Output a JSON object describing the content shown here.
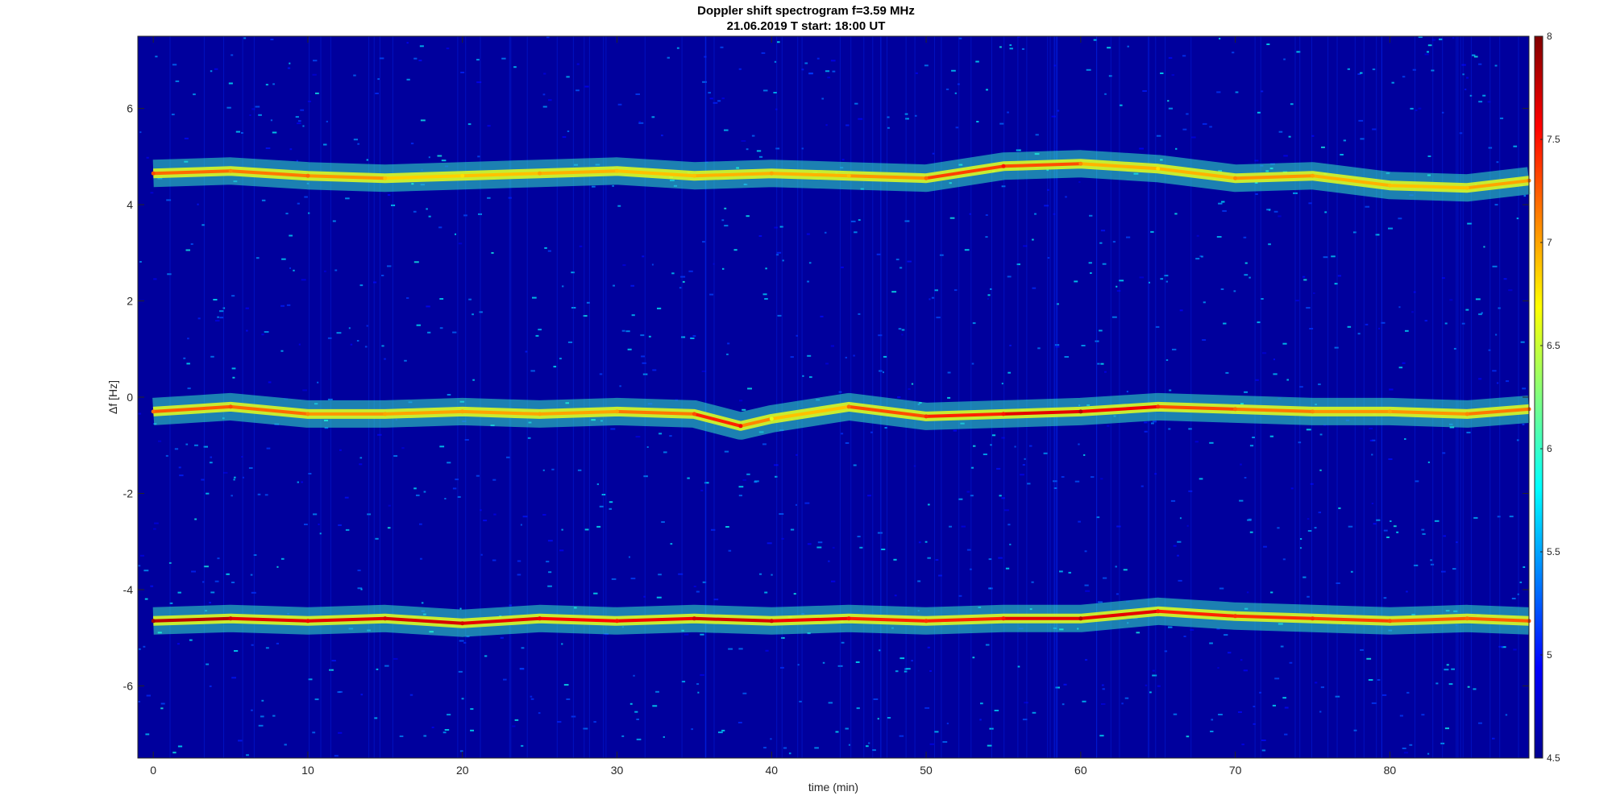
{
  "chart_data": {
    "type": "heatmap",
    "title": "Doppler shift spectrogram f=3.59 MHz",
    "subtitle": "21.06.2019   T start: 18:00 UT",
    "xlabel": "time (min)",
    "ylabel": "Δf [Hz]",
    "xlim": [
      -1,
      89
    ],
    "ylim": [
      -7.5,
      7.5
    ],
    "x_ticks": [
      0,
      10,
      20,
      30,
      40,
      50,
      60,
      70,
      80
    ],
    "y_ticks": [
      -6,
      -4,
      -2,
      0,
      2,
      4,
      6
    ],
    "colorbar": {
      "range": [
        4.5,
        8
      ],
      "ticks": [
        4.5,
        5,
        5.5,
        6,
        6.5,
        7,
        7.5,
        8
      ],
      "colormap": "jet"
    },
    "background_level": 4.6,
    "series": [
      {
        "x": [
          0,
          5,
          10,
          15,
          20,
          25,
          30,
          35,
          40,
          45,
          50,
          55,
          60,
          65,
          70,
          75,
          80,
          85,
          89
        ],
        "values": [
          4.65,
          4.7,
          4.6,
          4.55,
          4.6,
          4.65,
          4.7,
          4.6,
          4.65,
          4.6,
          4.55,
          4.8,
          4.85,
          4.75,
          4.55,
          4.6,
          4.4,
          4.35,
          4.5
        ],
        "intensity": [
          7.3,
          7.1,
          7.2,
          6.9,
          6.8,
          7.0,
          6.9,
          6.9,
          7.0,
          6.9,
          7.2,
          7.5,
          7.1,
          6.8,
          7.1,
          7.0,
          6.9,
          6.9,
          7.1
        ]
      },
      {
        "x": [
          0,
          5,
          10,
          15,
          20,
          25,
          30,
          35,
          38,
          40,
          45,
          50,
          55,
          60,
          65,
          70,
          75,
          80,
          85,
          89
        ],
        "values": [
          -0.3,
          -0.2,
          -0.35,
          -0.35,
          -0.3,
          -0.35,
          -0.3,
          -0.35,
          -0.6,
          -0.45,
          -0.2,
          -0.4,
          -0.35,
          -0.3,
          -0.2,
          -0.25,
          -0.3,
          -0.3,
          -0.35,
          -0.25
        ],
        "intensity": [
          7.2,
          7.3,
          7.1,
          7.0,
          7.0,
          7.0,
          7.0,
          7.3,
          7.6,
          6.6,
          7.2,
          7.4,
          7.5,
          7.8,
          7.4,
          7.2,
          7.1,
          7.0,
          7.1,
          7.2
        ]
      },
      {
        "x": [
          0,
          5,
          10,
          15,
          20,
          25,
          30,
          35,
          40,
          45,
          50,
          55,
          60,
          65,
          70,
          75,
          80,
          85,
          89
        ],
        "values": [
          -4.65,
          -4.6,
          -4.65,
          -4.6,
          -4.7,
          -4.6,
          -4.65,
          -4.6,
          -4.65,
          -4.6,
          -4.65,
          -4.6,
          -4.6,
          -4.45,
          -4.55,
          -4.6,
          -4.65,
          -4.6,
          -4.65
        ],
        "intensity": [
          7.9,
          7.7,
          7.6,
          7.7,
          7.7,
          7.6,
          7.5,
          7.7,
          7.7,
          7.5,
          7.4,
          7.5,
          7.8,
          7.5,
          7.4,
          7.4,
          7.3,
          7.2,
          7.3
        ]
      }
    ]
  }
}
